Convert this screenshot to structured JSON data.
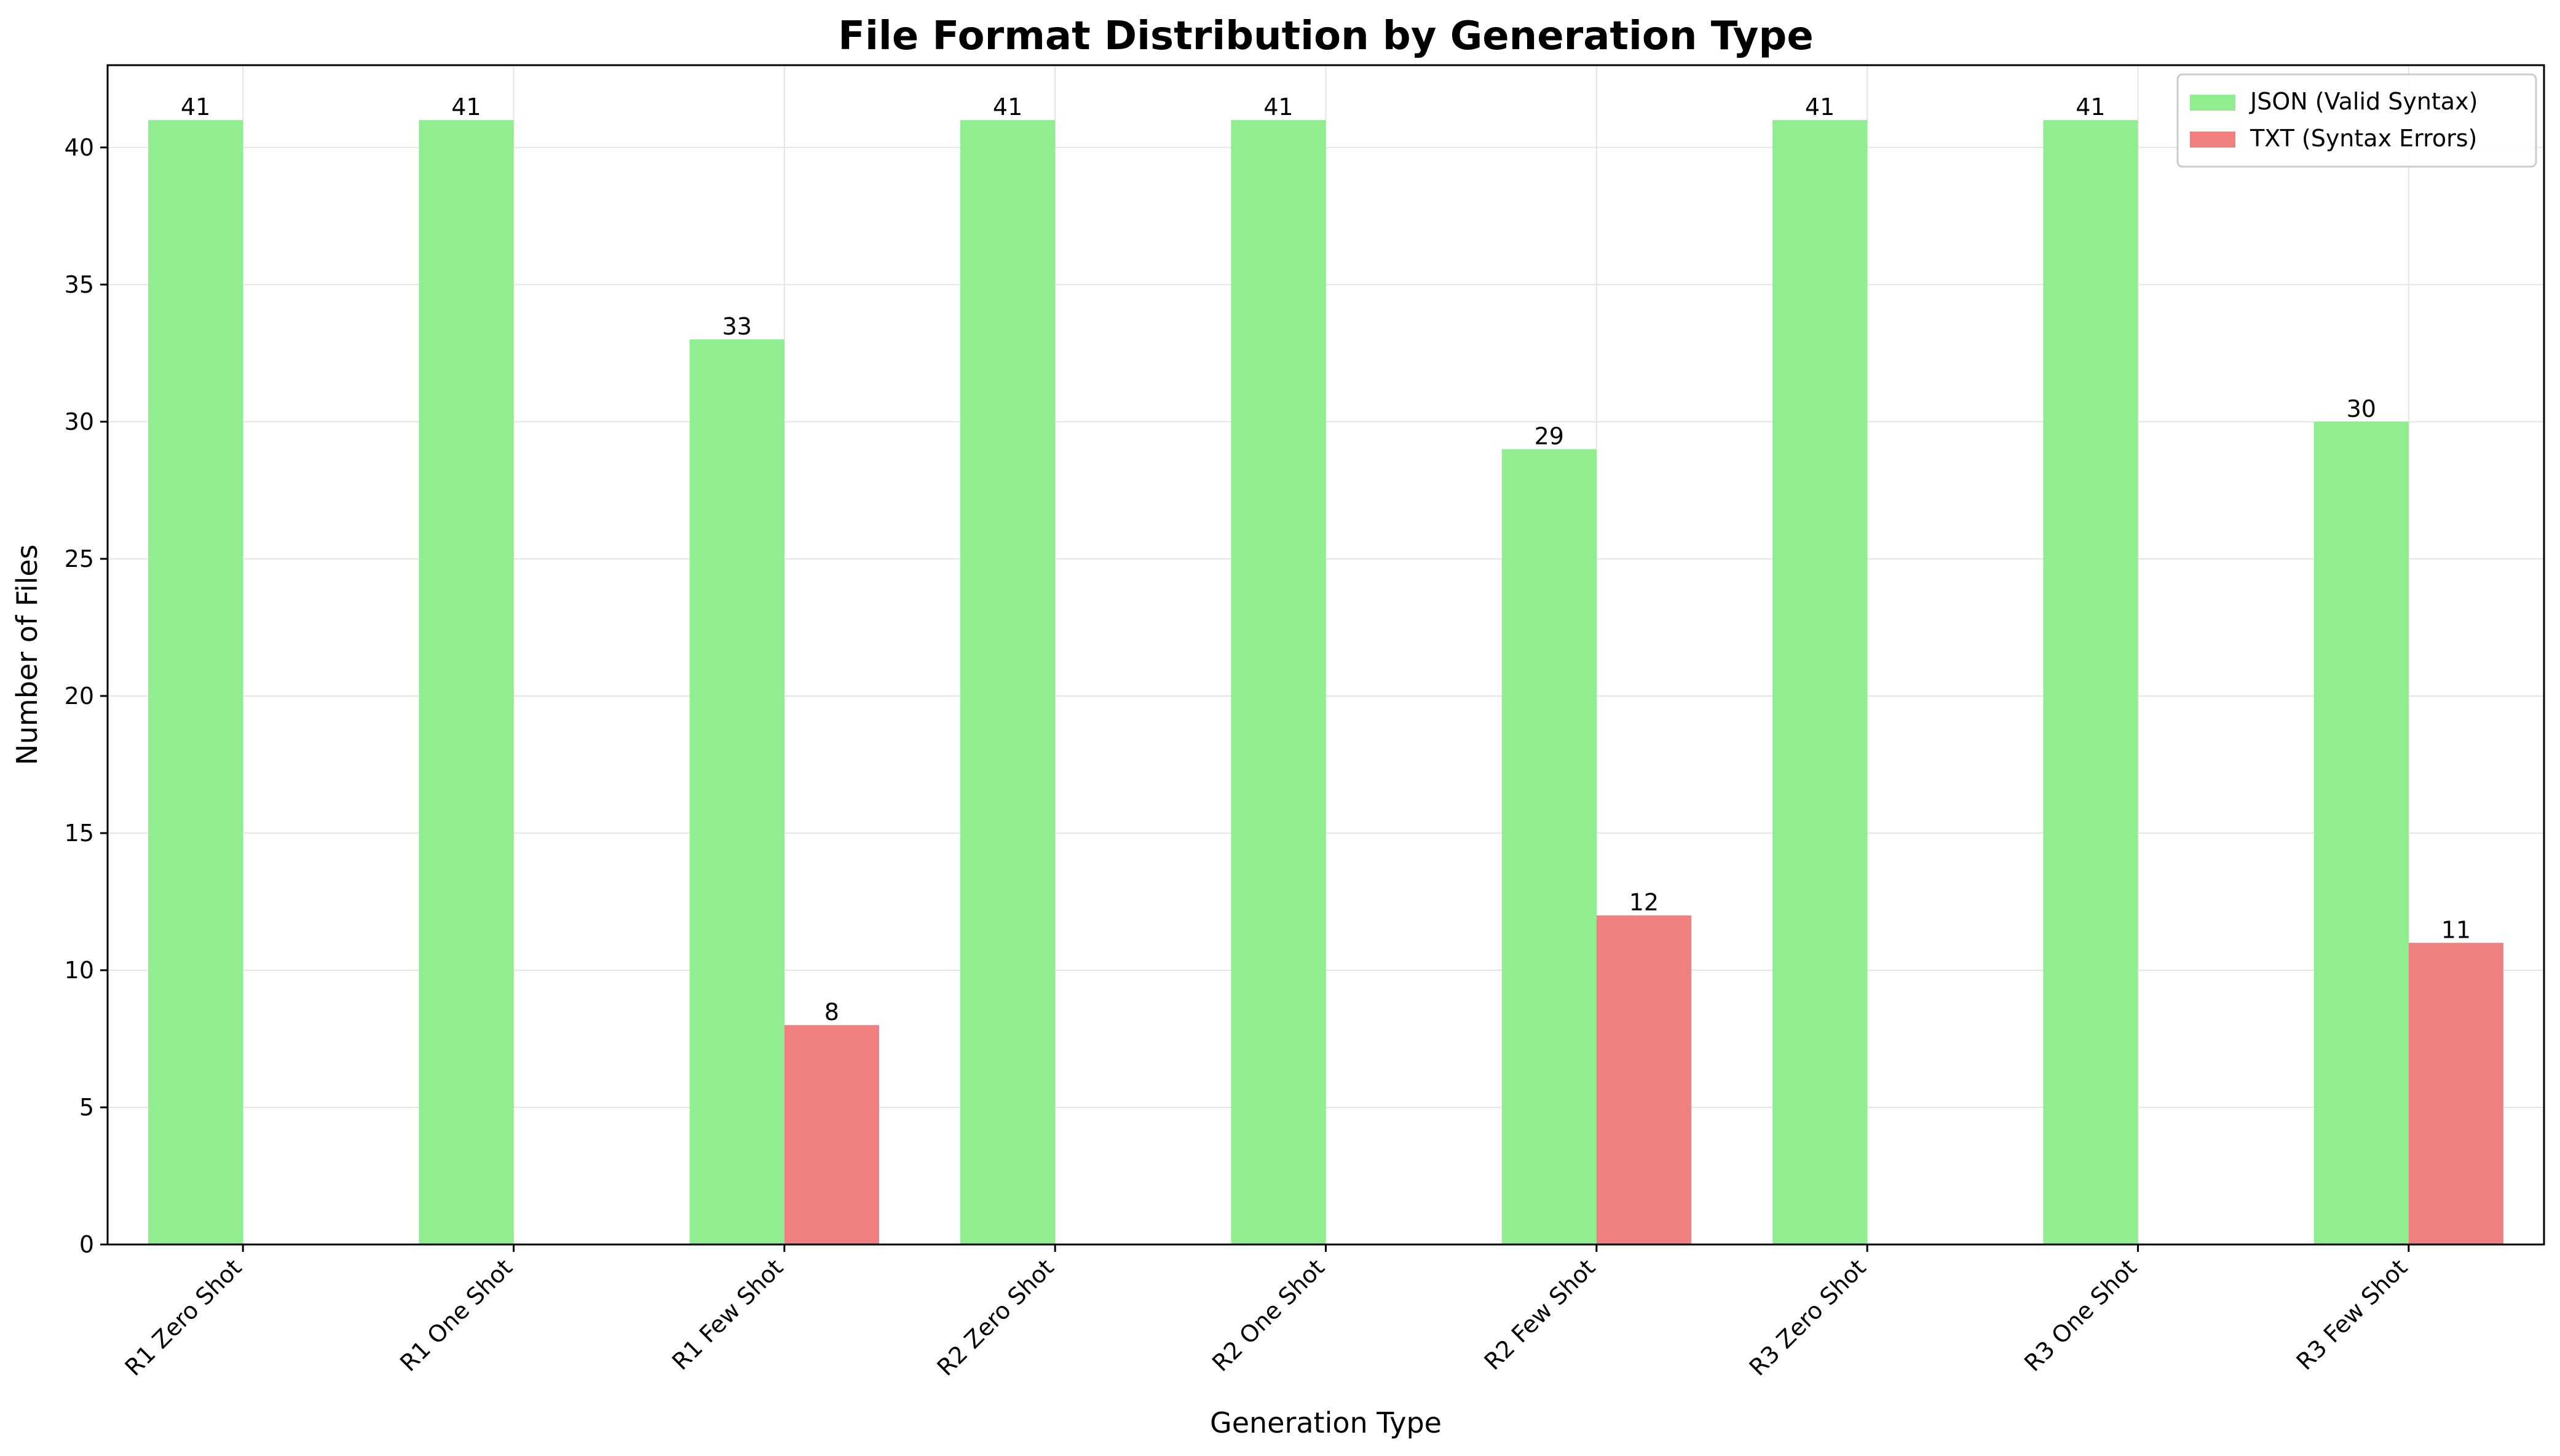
{
  "chart_data": {
    "type": "bar",
    "title": "File Format Distribution by Generation Type",
    "xlabel": "Generation Type",
    "ylabel": "Number of Files",
    "categories": [
      "R1 Zero Shot",
      "R1 One Shot",
      "R1 Few Shot",
      "R2 Zero Shot",
      "R2 One Shot",
      "R2 Few Shot",
      "R3 Zero Shot",
      "R3 One Shot",
      "R3 Few Shot"
    ],
    "series": [
      {
        "name": "JSON (Valid Syntax)",
        "color": "#90ee90",
        "values": [
          41,
          41,
          33,
          41,
          41,
          29,
          41,
          41,
          30
        ]
      },
      {
        "name": "TXT (Syntax Errors)",
        "color": "#f08080",
        "values": [
          0,
          0,
          8,
          0,
          0,
          12,
          0,
          0,
          11
        ]
      }
    ],
    "ylim": [
      0,
      43
    ],
    "yticks": [
      0,
      5,
      10,
      15,
      20,
      25,
      30,
      35,
      40
    ],
    "grid": true,
    "legend_position": "top-right"
  }
}
